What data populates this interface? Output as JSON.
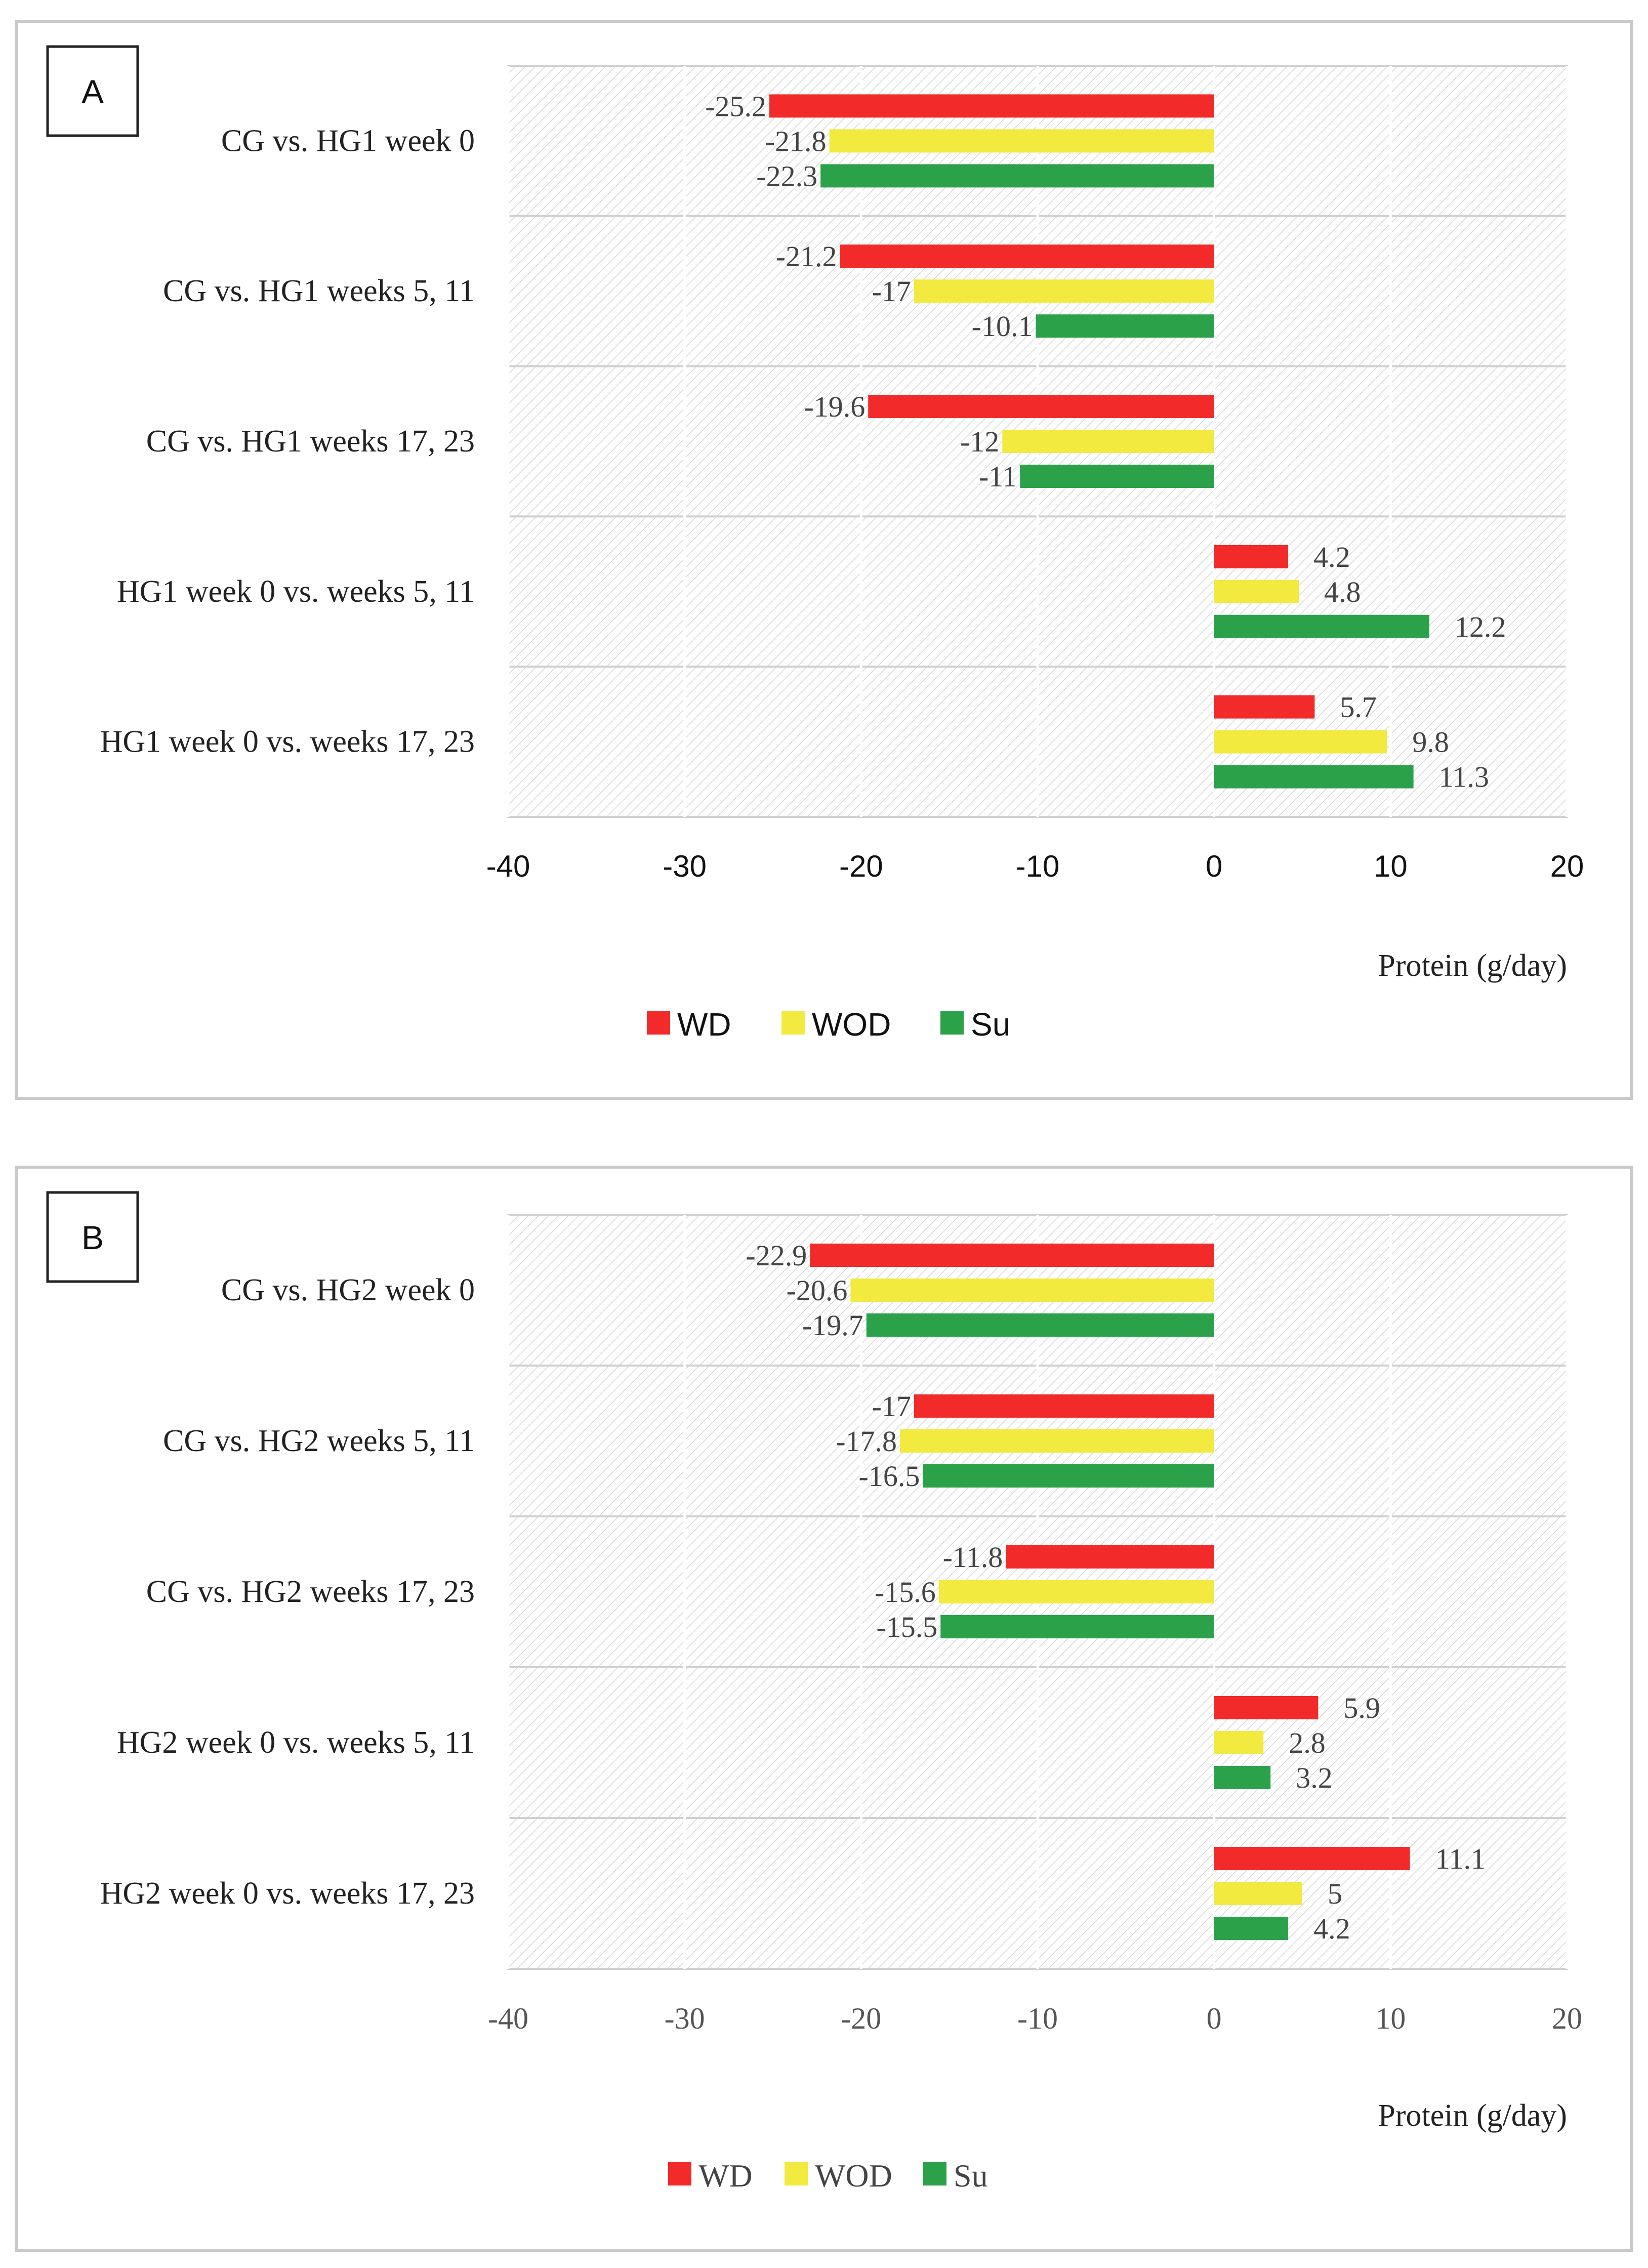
{
  "colors": {
    "WD": "#f22a2a",
    "WOD": "#f2ea3f",
    "Su": "#2ba24a"
  },
  "chart_data": [
    {
      "panel": "A",
      "type": "bar",
      "orientation": "horizontal",
      "categories": [
        "CG vs. HG1 week 0",
        "CG vs. HG1 weeks 5, 11",
        "CG vs. HG1 weeks 17, 23",
        "HG1 week 0 vs. weeks 5, 11",
        "HG1 week 0 vs. weeks 17, 23"
      ],
      "series": [
        {
          "name": "WD",
          "values": [
            -25.2,
            -21.2,
            -19.6,
            4.2,
            5.7
          ],
          "labels": [
            "-25.2",
            "-21.2",
            "-19.6",
            "4.2",
            "5.7"
          ]
        },
        {
          "name": "WOD",
          "values": [
            -21.8,
            -17,
            -12,
            4.8,
            9.8
          ],
          "labels": [
            "-21.8",
            "-17",
            "-12",
            "4.8",
            "9.8"
          ]
        },
        {
          "name": "Su",
          "values": [
            -22.3,
            -10.1,
            -11,
            12.2,
            11.3
          ],
          "labels": [
            "-22.3",
            "-10.1",
            "-11",
            "12.2",
            "11.3"
          ]
        }
      ],
      "xlim": [
        -40,
        20
      ],
      "xticks": [
        "-40",
        "-30",
        "-20",
        "-10",
        "0",
        "10",
        "20"
      ],
      "xlabel": "Protein (g/day)",
      "legend": [
        "WD",
        "WOD",
        "Su"
      ],
      "legend_position": "bottom"
    },
    {
      "panel": "B",
      "type": "bar",
      "orientation": "horizontal",
      "categories": [
        "CG vs. HG2 week 0",
        "CG vs. HG2 weeks 5, 11",
        "CG vs. HG2 weeks 17, 23",
        "HG2 week 0 vs. weeks 5, 11",
        "HG2 week 0 vs. weeks 17, 23"
      ],
      "series": [
        {
          "name": "WD",
          "values": [
            -22.9,
            -17,
            -11.8,
            5.9,
            11.1
          ],
          "labels": [
            "-22.9",
            "-17",
            "-11.8",
            "5.9",
            "11.1"
          ]
        },
        {
          "name": "WOD",
          "values": [
            -20.6,
            -17.8,
            -15.6,
            2.8,
            5
          ],
          "labels": [
            "-20.6",
            "-17.8",
            "-15.6",
            "2.8",
            "5"
          ]
        },
        {
          "name": "Su",
          "values": [
            -19.7,
            -16.5,
            -15.5,
            3.2,
            4.2
          ],
          "labels": [
            "-19.7",
            "-16.5",
            "-15.5",
            "3.2",
            "4.2"
          ]
        }
      ],
      "xlim": [
        -40,
        20
      ],
      "xticks": [
        "-40",
        "-30",
        "-20",
        "-10",
        "0",
        "10",
        "20"
      ],
      "xlabel": "Protein (g/day)",
      "legend": [
        "WD",
        "WOD",
        "Su"
      ],
      "legend_position": "bottom"
    }
  ]
}
